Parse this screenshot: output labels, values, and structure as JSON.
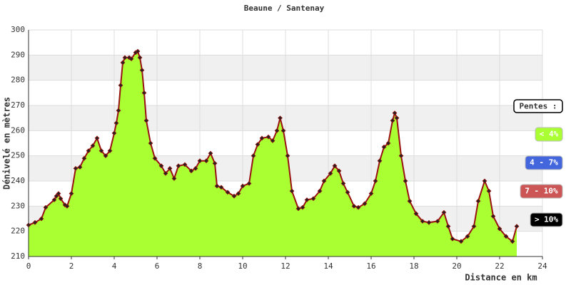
{
  "chart_data": {
    "type": "area",
    "title": "Beaune / Santenay",
    "x_label": "Distance en km",
    "y_label": "Dénivelé en mètres",
    "x": [
      0,
      0.3,
      0.6,
      0.8,
      1.2,
      1.3,
      1.4,
      1.5,
      1.7,
      1.8,
      2.0,
      2.2,
      2.4,
      2.6,
      2.8,
      3.0,
      3.2,
      3.4,
      3.6,
      3.8,
      4.0,
      4.1,
      4.2,
      4.3,
      4.4,
      4.5,
      4.7,
      4.8,
      5.0,
      5.1,
      5.2,
      5.3,
      5.4,
      5.5,
      5.7,
      5.9,
      6.2,
      6.4,
      6.6,
      6.8,
      7.0,
      7.3,
      7.6,
      7.8,
      8.0,
      8.3,
      8.5,
      8.7,
      8.8,
      9.0,
      9.3,
      9.6,
      9.8,
      10.0,
      10.3,
      10.5,
      10.7,
      10.9,
      11.2,
      11.4,
      11.6,
      11.75,
      11.9,
      12.1,
      12.3,
      12.6,
      12.8,
      13.0,
      13.3,
      13.6,
      13.8,
      14.1,
      14.3,
      14.5,
      14.7,
      14.9,
      15.2,
      15.4,
      15.7,
      16.0,
      16.2,
      16.4,
      16.6,
      16.8,
      17.0,
      17.1,
      17.2,
      17.4,
      17.6,
      17.8,
      18.1,
      18.4,
      18.7,
      19.1,
      19.4,
      19.6,
      19.8,
      20.2,
      20.5,
      20.8,
      21.0,
      21.3,
      21.5,
      21.7,
      22.0,
      22.3,
      22.6,
      22.8
    ],
    "values": [
      222.5,
      223.5,
      225,
      229.5,
      232.5,
      234,
      235,
      233,
      230.5,
      230,
      235,
      245,
      245.5,
      249,
      252,
      254,
      257,
      252,
      250,
      252,
      259,
      263,
      268,
      278,
      287,
      289,
      289,
      288.5,
      291,
      291.5,
      289,
      284,
      275,
      264,
      255,
      249,
      246,
      243,
      245,
      241,
      246,
      246.5,
      244,
      245,
      248,
      248,
      251,
      247,
      238,
      237.5,
      235.5,
      234,
      235,
      238,
      239,
      250,
      254.5,
      257,
      257.5,
      256,
      260,
      265,
      260,
      250,
      236,
      229,
      229.5,
      232.5,
      233,
      236,
      240,
      243,
      246,
      244,
      239,
      235.5,
      230,
      229.5,
      231,
      235,
      240,
      248,
      253.5,
      255,
      264,
      267,
      265,
      250,
      240,
      232,
      227,
      224,
      223.5,
      224,
      227.5,
      222,
      217,
      216,
      218,
      222,
      232,
      240,
      236,
      226,
      221,
      218,
      216,
      222
    ],
    "color": "#aaff33",
    "line_color": "#991111",
    "xlim": [
      0,
      24
    ],
    "ylim": [
      210,
      300
    ],
    "xticks": [
      0,
      2,
      4,
      6,
      8,
      10,
      12,
      14,
      16,
      18,
      20,
      22,
      24
    ],
    "yticks": [
      210,
      220,
      230,
      240,
      250,
      260,
      270,
      280,
      290,
      300
    ],
    "grid": true,
    "legend": {
      "title": "Pentes :",
      "position": "right",
      "items": [
        {
          "label": "< 4%",
          "color": "#aaff33"
        },
        {
          "label": "4 - 7%",
          "color": "#4466dd"
        },
        {
          "label": "7 - 10%",
          "color": "#cc5555"
        },
        {
          "label": "> 10%",
          "color": "#000000"
        }
      ]
    }
  }
}
